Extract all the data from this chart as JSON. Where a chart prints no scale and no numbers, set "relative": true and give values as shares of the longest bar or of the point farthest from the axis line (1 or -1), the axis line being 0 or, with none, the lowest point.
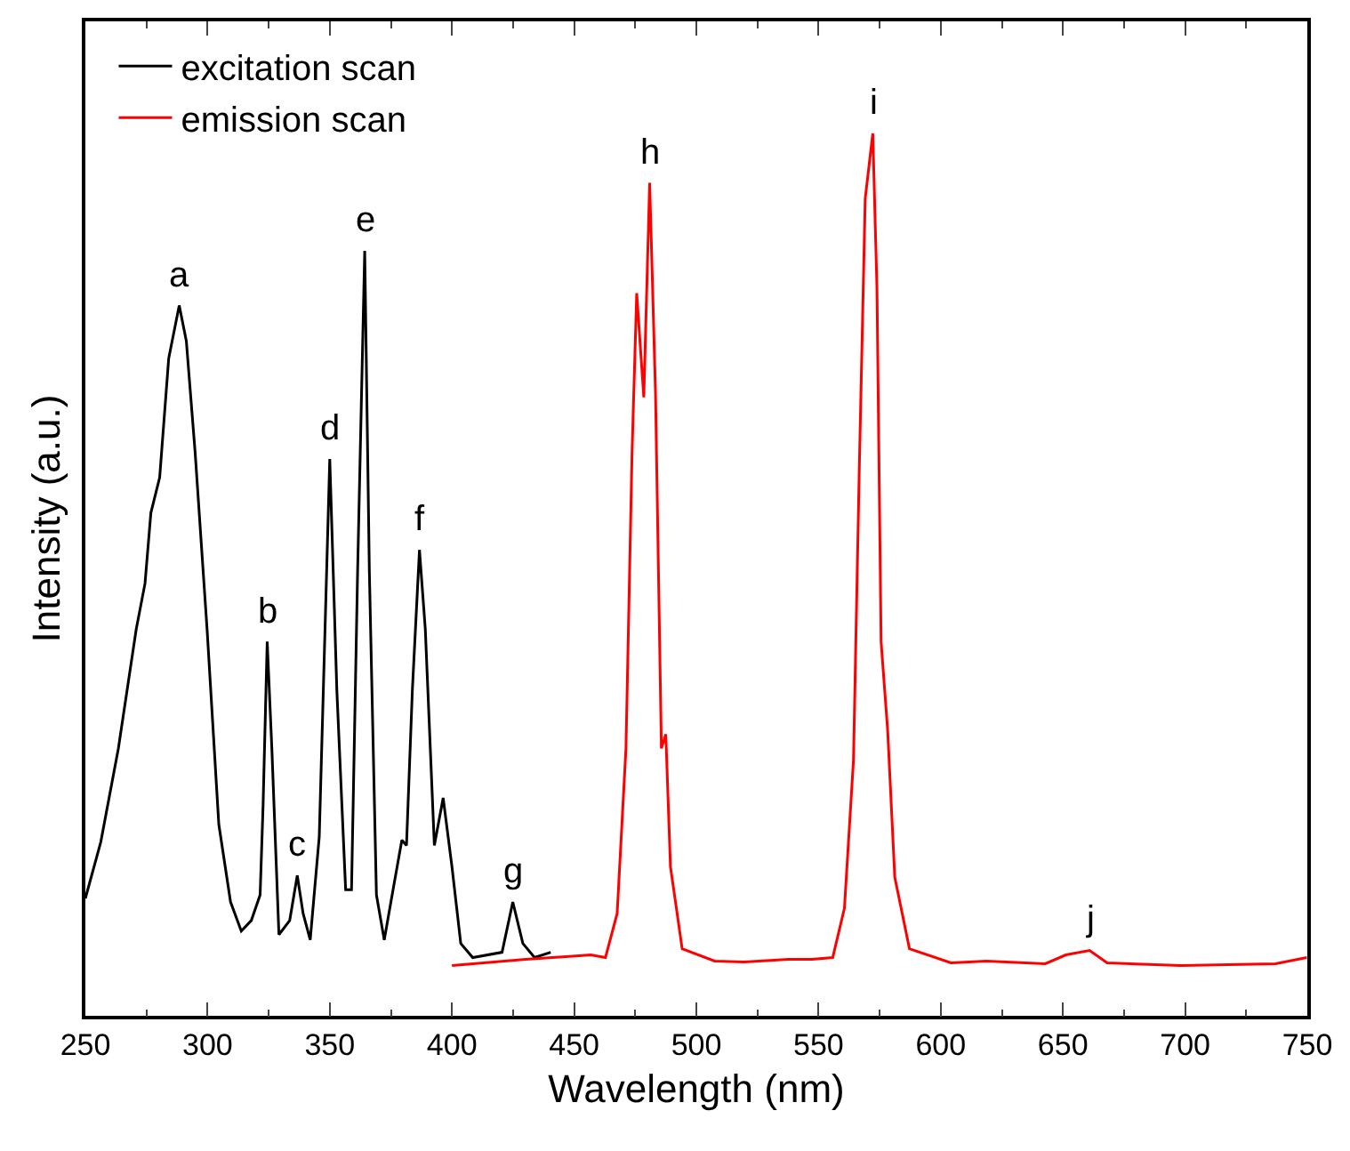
{
  "chart_data": {
    "type": "line",
    "relative": true,
    "xlabel": "Wavelength (nm)",
    "ylabel": "Intensity (a.u.)",
    "xlim": [
      250,
      750
    ],
    "xticks": [
      250,
      300,
      350,
      400,
      450,
      500,
      550,
      600,
      650,
      700,
      750
    ],
    "legend": "top left",
    "marker": "none",
    "line_style": "solid",
    "series": [
      {
        "name": "excitation scan",
        "color": "#000000",
        "x": [
          250,
          256.3,
          263.5,
          270.8,
          274.4,
          276.8,
          280.4,
          284.1,
          288.4,
          291.3,
          294.9,
          299.8,
          304.6,
          309.4,
          313.8,
          317.9,
          321.5,
          322.7,
          324.4,
          326.3,
          329.2,
          333.6,
          336.7,
          339.1,
          342.0,
          345.7,
          350.0,
          352.9,
          356.5,
          358.9,
          361.4,
          364.3,
          366.2,
          369.1,
          372.3,
          375.9,
          379.5,
          381.4,
          383.8,
          386.7,
          389.1,
          392.8,
          396.4,
          400.0,
          403.6,
          408.5,
          420.5,
          424.9,
          429.0,
          433.8,
          440.4
        ],
        "values": [
          0.133,
          0.197,
          0.303,
          0.438,
          0.49,
          0.57,
          0.61,
          0.745,
          0.805,
          0.765,
          0.639,
          0.438,
          0.217,
          0.129,
          0.096,
          0.108,
          0.137,
          0.237,
          0.424,
          0.303,
          0.092,
          0.108,
          0.159,
          0.116,
          0.086,
          0.203,
          0.631,
          0.369,
          0.143,
          0.143,
          0.504,
          0.867,
          0.504,
          0.137,
          0.086,
          0.143,
          0.199,
          0.193,
          0.369,
          0.528,
          0.438,
          0.193,
          0.247,
          0.169,
          0.082,
          0.066,
          0.072,
          0.129,
          0.082,
          0.066,
          0.072
        ]
      },
      {
        "name": "emission scan",
        "color": "#ff0000",
        "x": [
          400.0,
          430.2,
          452.0,
          456.8,
          462.8,
          467.6,
          471.2,
          473.7,
          475.6,
          478.5,
          480.9,
          483.3,
          485.7,
          487.5,
          489.4,
          494.2,
          507.5,
          519.6,
          537.7,
          547.3,
          555.8,
          560.6,
          564.3,
          566.7,
          569.1,
          572.2,
          573.9,
          575.6,
          578.3,
          581.2,
          587.2,
          604.2,
          618.7,
          642.8,
          651.2,
          660.9,
          668.1,
          698.3,
          737.0,
          749.8
        ],
        "values": [
          0.057,
          0.064,
          0.068,
          0.069,
          0.066,
          0.116,
          0.303,
          0.639,
          0.819,
          0.701,
          0.944,
          0.705,
          0.303,
          0.319,
          0.169,
          0.076,
          0.062,
          0.061,
          0.064,
          0.064,
          0.066,
          0.122,
          0.29,
          0.624,
          0.926,
          1,
          0.825,
          0.424,
          0.323,
          0.157,
          0.076,
          0.06,
          0.062,
          0.059,
          0.069,
          0.074,
          0.06,
          0.057,
          0.059,
          0.066
        ]
      }
    ],
    "annotations": [
      {
        "text": "a",
        "x": 288.4,
        "y": 0.805
      },
      {
        "text": "b",
        "x": 324.4,
        "y": 0.424
      },
      {
        "text": "c",
        "x": 336.7,
        "y": 0.159
      },
      {
        "text": "d",
        "x": 350.0,
        "y": 0.631
      },
      {
        "text": "e",
        "x": 364.3,
        "y": 0.867
      },
      {
        "text": "f",
        "x": 386.7,
        "y": 0.528
      },
      {
        "text": "g",
        "x": 424.9,
        "y": 0.129
      },
      {
        "text": "h",
        "x": 480.9,
        "y": 0.944
      },
      {
        "text": "i",
        "x": 572.2,
        "y": 1
      },
      {
        "text": "j",
        "x": 660.9,
        "y": 0.074
      }
    ]
  }
}
